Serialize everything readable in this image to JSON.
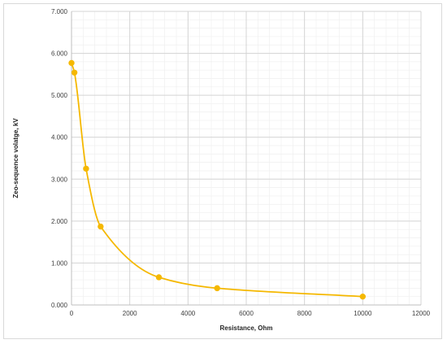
{
  "chart_data": {
    "type": "line",
    "title": "",
    "xlabel": "Resistance, Ohm",
    "ylabel": "Zeo-sequence volatge, kV",
    "xlim": [
      0,
      12000
    ],
    "ylim": [
      0,
      7
    ],
    "x_ticks": [
      "0",
      "2000",
      "4000",
      "6000",
      "8000",
      "10000",
      "12000"
    ],
    "y_ticks": [
      "0.000",
      "1.000",
      "2.000",
      "3.000",
      "4.000",
      "5.000",
      "6.000",
      "7.000"
    ],
    "grid": true,
    "legend": "none",
    "series": [
      {
        "color": "#f5b800",
        "x": [
          0,
          100,
          500,
          1000,
          3000,
          5000,
          10000
        ],
        "y": [
          5.77,
          5.54,
          3.25,
          1.87,
          0.66,
          0.4,
          0.2
        ],
        "smooth": true,
        "markers": true
      }
    ]
  }
}
